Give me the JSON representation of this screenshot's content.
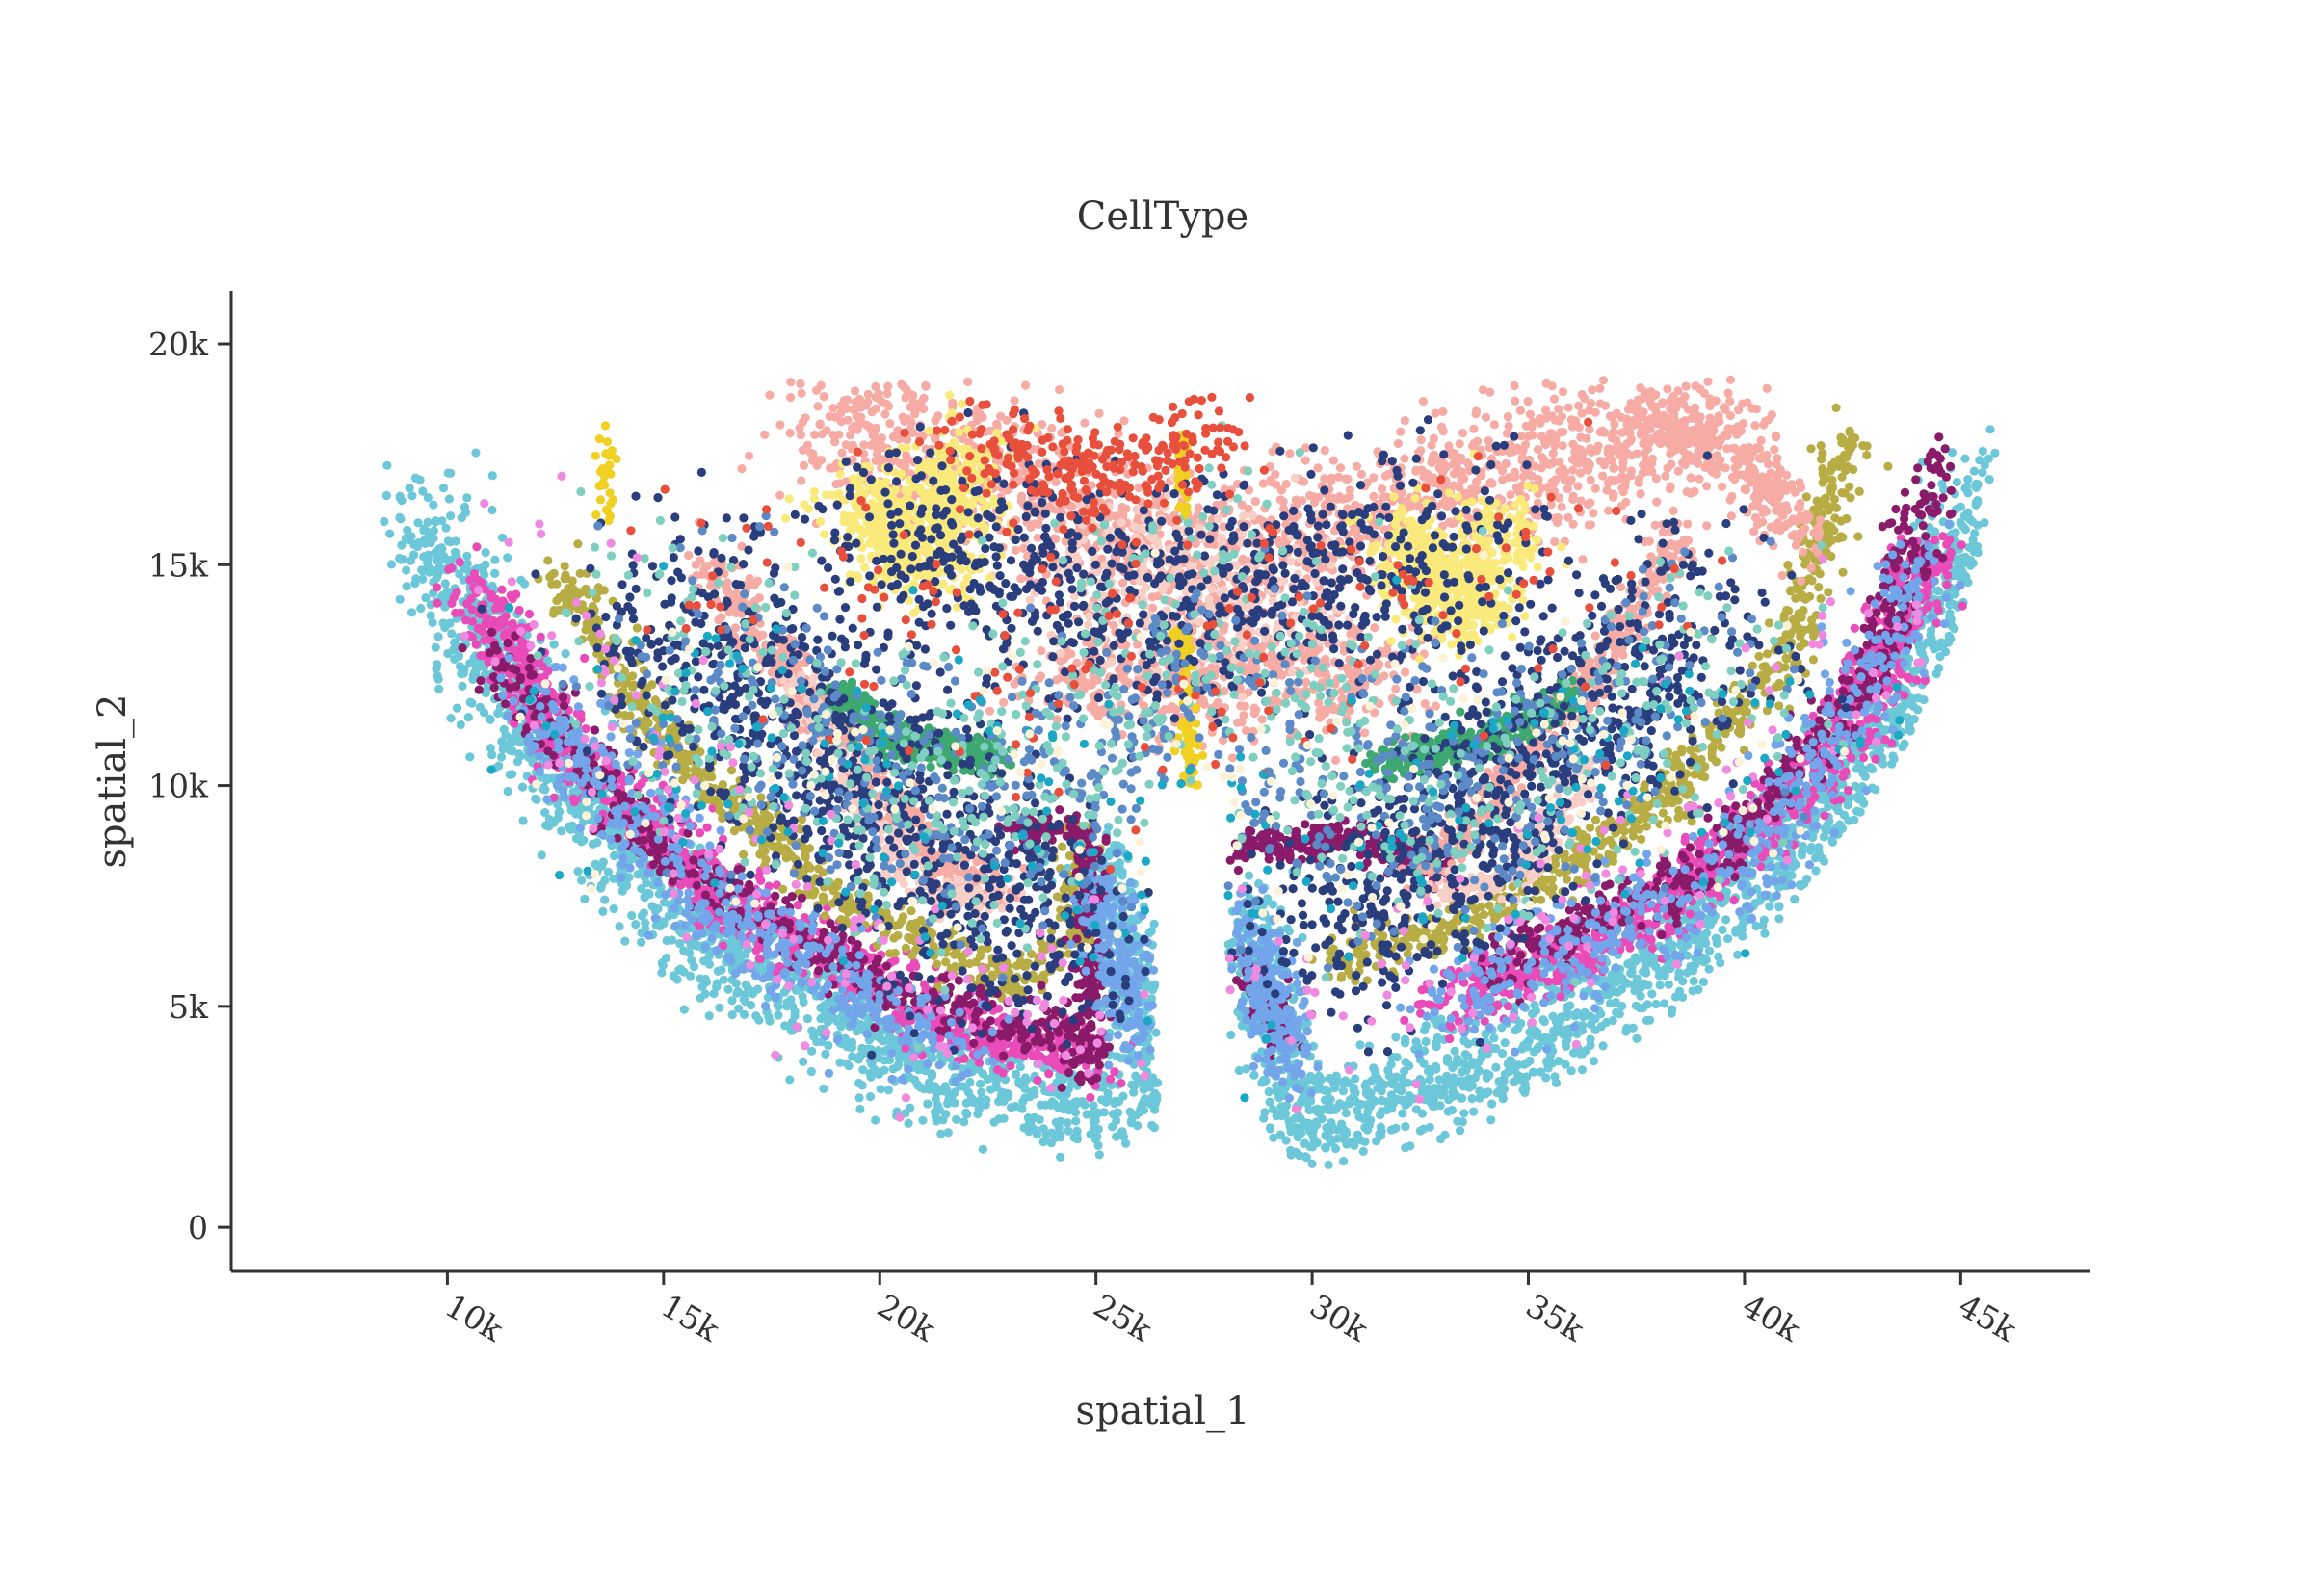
{
  "chart_data": {
    "type": "scatter",
    "title": "CellType",
    "xlabel": "spatial_1",
    "ylabel": "spatial_2",
    "xlim": [
      5000,
      48000
    ],
    "ylim": [
      -1000,
      21200
    ],
    "xticks": [
      10000,
      15000,
      20000,
      25000,
      30000,
      35000,
      40000,
      45000
    ],
    "xtick_labels": [
      "10k",
      "15k",
      "20k",
      "25k",
      "30k",
      "35k",
      "40k",
      "45k"
    ],
    "yticks": [
      0,
      5000,
      10000,
      15000,
      20000
    ],
    "ytick_labels": [
      "0",
      "5k",
      "10k",
      "15k",
      "20k"
    ],
    "grid": false,
    "legend": "none",
    "marker": "circle",
    "point_count_approx": 20000,
    "series": [
      {
        "color": "#6cc7d9",
        "regions": [
          {
            "points": [
              [
                9500,
                16000
              ],
              [
                12000,
                11000
              ],
              [
                16000,
                6500
              ],
              [
                21000,
                3500
              ],
              [
                25500,
                2500
              ]
            ],
            "spread": 1000,
            "n": 1500
          },
          {
            "points": [
              [
                25000,
                8500
              ],
              [
                26000,
                5000
              ],
              [
                26500,
                2500
              ]
            ],
            "spread": 700,
            "n": 300
          },
          {
            "points": [
              [
                28500,
                7500
              ],
              [
                29000,
                4500
              ],
              [
                30000,
                2000
              ]
            ],
            "spread": 650,
            "n": 280
          },
          {
            "points": [
              [
                30000,
                2500
              ],
              [
                35000,
                4000
              ],
              [
                40000,
                7500
              ],
              [
                44000,
                12000
              ],
              [
                45500,
                17000
              ]
            ],
            "spread": 1000,
            "n": 1400
          }
        ]
      },
      {
        "color": "#e94cb8",
        "regions": [
          {
            "points": [
              [
                10500,
                14500
              ],
              [
                13000,
                10500
              ],
              [
                17000,
                7000
              ],
              [
                22000,
                4500
              ],
              [
                25000,
                3800
              ]
            ],
            "spread": 650,
            "n": 1000
          },
          {
            "points": [
              [
                33000,
                5000
              ],
              [
                38000,
                7200
              ],
              [
                42000,
                10500
              ],
              [
                44500,
                15500
              ]
            ],
            "spread": 650,
            "n": 900
          }
        ]
      },
      {
        "color": "#b8ac45",
        "regions": [
          {
            "points": [
              [
                12500,
                15000
              ],
              [
                15000,
                11000
              ],
              [
                19000,
                7500
              ],
              [
                23000,
                5500
              ],
              [
                24500,
                6500
              ],
              [
                24800,
                9000
              ]
            ],
            "spread": 450,
            "n": 700
          },
          {
            "points": [
              [
                30500,
                6000
              ],
              [
                34000,
                7000
              ],
              [
                38000,
                9500
              ],
              [
                41000,
                13000
              ],
              [
                42500,
                18000
              ]
            ],
            "spread": 450,
            "n": 650
          }
        ]
      },
      {
        "color": "#8a1a6a",
        "regions": [
          {
            "points": [
              [
                11000,
                13000
              ],
              [
                15000,
                8500
              ],
              [
                20000,
                5500
              ],
              [
                25000,
                4000
              ]
            ],
            "spread": 550,
            "n": 500
          },
          {
            "points": [
              [
                23000,
                9000
              ],
              [
                24800,
                9000
              ],
              [
                24800,
                6000
              ],
              [
                24800,
                3500
              ]
            ],
            "spread": 350,
            "n": 280
          },
          {
            "points": [
              [
                28000,
                8500
              ],
              [
                31000,
                8800
              ],
              [
                33000,
                8000
              ]
            ],
            "spread": 350,
            "n": 230
          },
          {
            "points": [
              [
                28500,
                6000
              ],
              [
                29500,
                4000
              ]
            ],
            "spread": 300,
            "n": 120
          },
          {
            "points": [
              [
                34000,
                5800
              ],
              [
                39000,
                8000
              ],
              [
                43000,
                12500
              ],
              [
                44500,
                17500
              ]
            ],
            "spread": 550,
            "n": 480
          }
        ]
      },
      {
        "color": "#72a5ea",
        "regions": [
          {
            "points": [
              [
                12000,
                12000
              ],
              [
                17000,
                6500
              ],
              [
                22000,
                4000
              ]
            ],
            "spread": 900,
            "n": 450
          },
          {
            "points": [
              [
                25000,
                8000
              ],
              [
                26000,
                4000
              ]
            ],
            "spread": 600,
            "n": 200
          },
          {
            "points": [
              [
                28500,
                7000
              ],
              [
                29500,
                3500
              ]
            ],
            "spread": 600,
            "n": 220
          },
          {
            "points": [
              [
                33000,
                5000
              ],
              [
                40000,
                8000
              ],
              [
                44500,
                15000
              ]
            ],
            "spread": 900,
            "n": 450
          }
        ]
      },
      {
        "color": "#f6aba5",
        "regions": [
          {
            "points": [
              [
                16000,
                15000
              ],
              [
                17500,
                13000
              ],
              [
                19500,
                10500
              ],
              [
                21500,
                8000
              ],
              [
                23000,
                7500
              ]
            ],
            "spread": 450,
            "n": 500
          },
          {
            "points": [
              [
                38500,
                15500
              ],
              [
                36500,
                12500
              ],
              [
                34500,
                10000
              ],
              [
                32500,
                8000
              ]
            ],
            "spread": 450,
            "n": 420
          },
          {
            "points": [
              [
                18500,
                18200
              ],
              [
                23000,
                17000
              ],
              [
                27000,
                15000
              ],
              [
                31000,
                16000
              ],
              [
                36000,
                17500
              ],
              [
                39500,
                18200
              ]
            ],
            "spread": 1400,
            "n": 1700
          },
          {
            "points": [
              [
                24000,
                12500
              ],
              [
                28000,
                12500
              ],
              [
                32000,
                12500
              ]
            ],
            "spread": 1100,
            "n": 500
          },
          {
            "points": [
              [
                37500,
                18200
              ],
              [
                40000,
                17500
              ],
              [
                41500,
                15500
              ]
            ],
            "spread": 600,
            "n": 300
          }
        ]
      },
      {
        "color": "#f8cfc6",
        "regions": [
          {
            "points": [
              [
                18000,
                12500
              ],
              [
                19500,
                9500
              ],
              [
                21000,
                7500
              ],
              [
                23000,
                7500
              ]
            ],
            "spread": 400,
            "n": 220
          },
          {
            "points": [
              [
                36500,
                10500
              ],
              [
                35000,
                8200
              ],
              [
                33000,
                7500
              ]
            ],
            "spread": 400,
            "n": 200
          },
          {
            "points": [
              [
                24000,
                15000
              ],
              [
                30000,
                14000
              ]
            ],
            "spread": 1500,
            "n": 300
          }
        ]
      },
      {
        "color": "#faea7c",
        "regions": [
          {
            "points": [
              [
                19500,
                16500
              ],
              [
                21000,
                15000
              ],
              [
                22000,
                17500
              ]
            ],
            "spread": 1000,
            "n": 650
          },
          {
            "points": [
              [
                32000,
                15500
              ],
              [
                33500,
                14000
              ],
              [
                34500,
                16000
              ]
            ],
            "spread": 900,
            "n": 550
          }
        ]
      },
      {
        "color": "#3da86f",
        "regions": [
          {
            "points": [
              [
                19000,
                12000
              ],
              [
                20500,
                11000
              ],
              [
                22800,
                10600
              ]
            ],
            "spread": 350,
            "n": 360
          },
          {
            "points": [
              [
                31500,
                10500
              ],
              [
                34000,
                11000
              ],
              [
                36000,
                12000
              ]
            ],
            "spread": 350,
            "n": 330
          }
        ]
      },
      {
        "color": "#f0d020",
        "regions": [
          {
            "points": [
              [
                27000,
                13500
              ],
              [
                27100,
                11500
              ],
              [
                27200,
                10000
              ]
            ],
            "spread": 180,
            "n": 90
          },
          {
            "points": [
              [
                27000,
                18000
              ],
              [
                27000,
                16000
              ]
            ],
            "spread": 120,
            "n": 40
          },
          {
            "points": [
              [
                13600,
                16000
              ],
              [
                13700,
                18000
              ]
            ],
            "spread": 200,
            "n": 30
          }
        ]
      },
      {
        "color": "#2a3d7c",
        "regions": [
          {
            "points": [
              [
                15000,
                14000
              ],
              [
                20000,
                9500
              ],
              [
                24000,
                6500
              ]
            ],
            "spread": 2300,
            "n": 900
          },
          {
            "points": [
              [
                39000,
                14000
              ],
              [
                34000,
                9500
              ],
              [
                30000,
                6500
              ]
            ],
            "spread": 2300,
            "n": 850
          },
          {
            "points": [
              [
                20000,
                15500
              ],
              [
                27000,
                14000
              ],
              [
                34000,
                15500
              ]
            ],
            "spread": 2200,
            "n": 800
          }
        ]
      },
      {
        "color": "#5b8ac7",
        "regions": [
          {
            "points": [
              [
                15000,
                13000
              ],
              [
                22000,
                9000
              ],
              [
                27000,
                12000
              ],
              [
                32000,
                9000
              ],
              [
                39000,
                13000
              ]
            ],
            "spread": 2500,
            "n": 800
          }
        ]
      },
      {
        "color": "#7fcfc0",
        "regions": [
          {
            "points": [
              [
                14000,
                13500
              ],
              [
                22000,
                8500
              ],
              [
                27000,
                15000
              ],
              [
                33000,
                8500
              ],
              [
                40000,
                13500
              ]
            ],
            "spread": 2600,
            "n": 700
          }
        ]
      },
      {
        "color": "#e8503d",
        "regions": [
          {
            "points": [
              [
                22000,
                17800
              ],
              [
                25500,
                17000
              ],
              [
                28000,
                18000
              ]
            ],
            "spread": 900,
            "n": 250
          },
          {
            "points": [
              [
                17000,
                15000
              ],
              [
                27000,
                13000
              ],
              [
                37000,
                15000
              ]
            ],
            "spread": 3000,
            "n": 180
          }
        ]
      },
      {
        "color": "#f08ae0",
        "regions": [
          {
            "points": [
              [
                11000,
                15000
              ],
              [
                20000,
                5000
              ],
              [
                34000,
                5500
              ],
              [
                44000,
                14000
              ]
            ],
            "spread": 2000,
            "n": 240
          }
        ]
      },
      {
        "color": "#1aa8c4",
        "regions": [
          {
            "points": [
              [
                12000,
                12000
              ],
              [
                26000,
                8000
              ],
              [
                42000,
                12000
              ]
            ],
            "spread": 3000,
            "n": 220
          }
        ]
      },
      {
        "color": "#fbf2d8",
        "regions": [
          {
            "points": [
              [
                12000,
                10000
              ],
              [
                27000,
                10000
              ],
              [
                42000,
                10000
              ]
            ],
            "spread": 3500,
            "n": 160
          }
        ]
      }
    ]
  }
}
